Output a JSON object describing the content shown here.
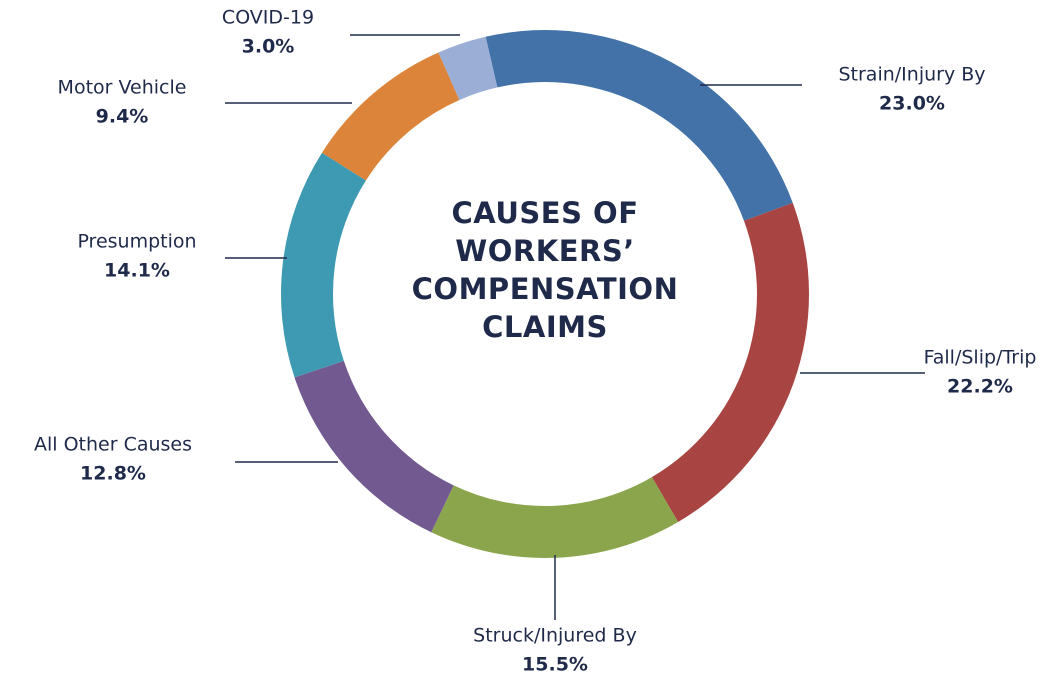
{
  "chart_data": {
    "type": "pie",
    "title": "CAUSES OF WORKERS’ COMPENSATION CLAIMS",
    "categories": [
      "Strain/Injury By",
      "Fall/Slip/Trip",
      "Struck/Injured By",
      "All Other Causes",
      "Presumption",
      "Motor Vehicle",
      "COVID-19"
    ],
    "values": [
      23.0,
      22.2,
      15.5,
      12.8,
      14.1,
      9.4,
      3.0
    ],
    "value_labels": [
      "23.0%",
      "22.2%",
      "15.5%",
      "12.8%",
      "14.1%",
      "9.4%",
      "3.0%"
    ],
    "colors": [
      "#4272a8",
      "#a84441",
      "#8ba54c",
      "#725a91",
      "#3e9ab2",
      "#db843a",
      "#9aaed6"
    ]
  }
}
